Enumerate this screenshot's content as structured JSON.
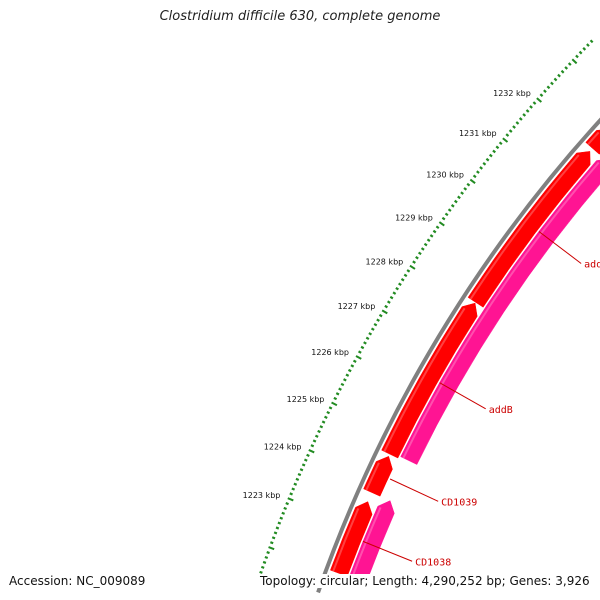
{
  "title": "Clostridium difficile 630, complete genome",
  "footer": {
    "accession": "Accession: NC_009089",
    "stats": "Topology: circular; Length: 4,290,252 bp; Genes: 3,926"
  },
  "colors": {
    "backbone": "#808080",
    "gene_forward": "#ff0000",
    "gene_reverse": "#ff1493",
    "ticks": "#228b22",
    "gene_label": "#cc0000"
  },
  "ruler": {
    "ticks": [
      {
        "kbp": 1223,
        "label": "1223 kbp"
      },
      {
        "kbp": 1224,
        "label": "1224 kbp"
      },
      {
        "kbp": 1225,
        "label": "1225 kbp"
      },
      {
        "kbp": 1226,
        "label": "1226 kbp"
      },
      {
        "kbp": 1227,
        "label": "1227 kbp"
      },
      {
        "kbp": 1228,
        "label": "1228 kbp"
      },
      {
        "kbp": 1229,
        "label": "1229 kbp"
      },
      {
        "kbp": 1230,
        "label": "1230 kbp"
      },
      {
        "kbp": 1231,
        "label": "1231 kbp"
      },
      {
        "kbp": 1232,
        "label": "1232 kbp"
      }
    ]
  },
  "genes": [
    {
      "name": "CD1038",
      "strand": "forward",
      "start_kbp": 1222.0,
      "end_kbp": 1223.55
    },
    {
      "name": "",
      "strand": "reverse",
      "start_kbp": 1222.0,
      "end_kbp": 1223.75
    },
    {
      "name": "CD1039",
      "strand": "forward",
      "start_kbp": 1223.75,
      "end_kbp": 1224.55
    },
    {
      "name": "addB",
      "strand": "forward",
      "start_kbp": 1224.6,
      "end_kbp": 1228.08
    },
    {
      "name": "",
      "strand": "reverse",
      "start_kbp": 1224.65,
      "end_kbp": 1232.05
    },
    {
      "name": "addA",
      "strand": "forward",
      "start_kbp": 1228.1,
      "end_kbp": 1231.9
    },
    {
      "name": "",
      "strand": "forward",
      "start_kbp": 1231.98,
      "end_kbp": 1232.5
    }
  ]
}
